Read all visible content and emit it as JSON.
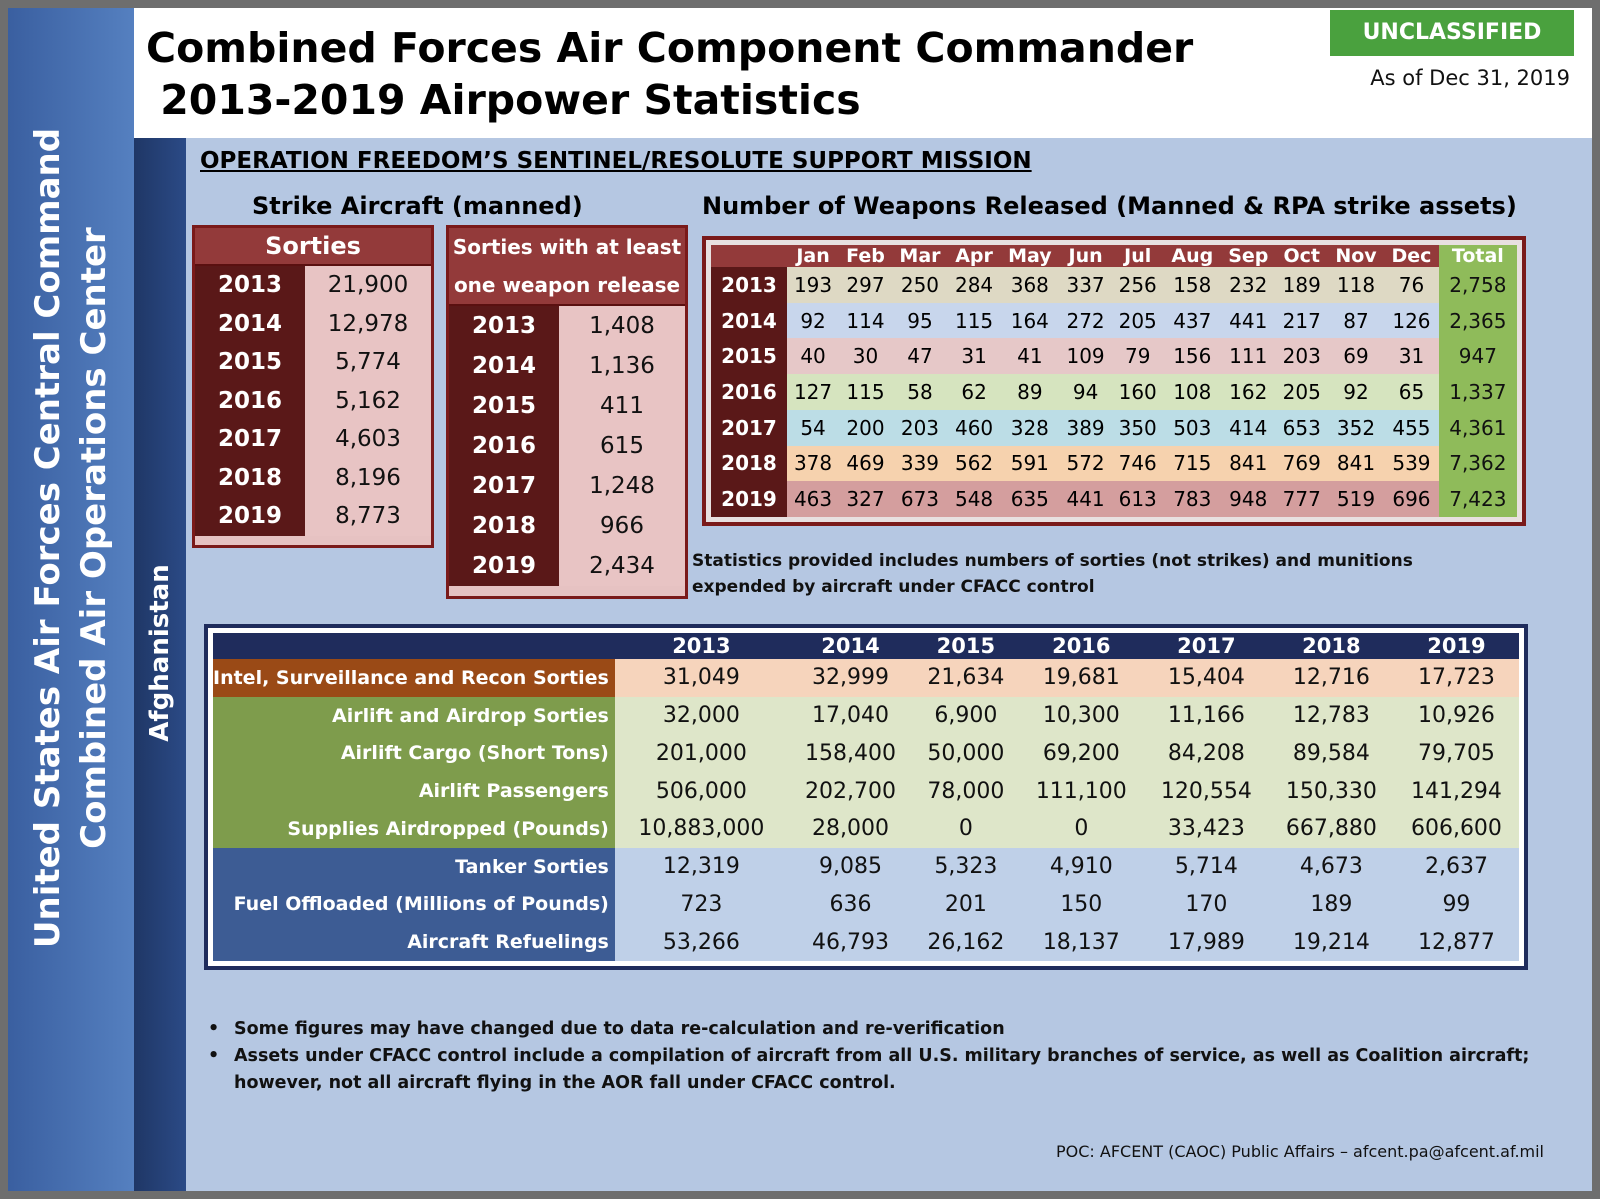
{
  "header": {
    "title_line1": "Combined Forces Air Component Commander",
    "title_line2": " 2013-2019 Airpower Statistics",
    "classification": "UNCLASSIFIED",
    "as_of": "As of Dec 31, 2019"
  },
  "sidebar": {
    "line1": "United States Air Forces Central Command",
    "line2": "Combined Air Operations Center",
    "region": "Afghanistan"
  },
  "mission_title": "OPERATION FREEDOM’S SENTINEL/RESOLUTE SUPPORT MISSION",
  "strike": {
    "title": "Strike Aircraft (manned)",
    "sorties": {
      "header": "Sorties",
      "rows": [
        {
          "year": "2013",
          "value": "21,900"
        },
        {
          "year": "2014",
          "value": "12,978"
        },
        {
          "year": "2015",
          "value": "5,774"
        },
        {
          "year": "2016",
          "value": "5,162"
        },
        {
          "year": "2017",
          "value": "4,603"
        },
        {
          "year": "2018",
          "value": "8,196"
        },
        {
          "year": "2019",
          "value": "8,773"
        }
      ]
    },
    "weapon_release": {
      "header_line1": "Sorties with at least",
      "header_line2": "one weapon release",
      "rows": [
        {
          "year": "2013",
          "value": "1,408"
        },
        {
          "year": "2014",
          "value": "1,136"
        },
        {
          "year": "2015",
          "value": "411"
        },
        {
          "year": "2016",
          "value": "615"
        },
        {
          "year": "2017",
          "value": "1,248"
        },
        {
          "year": "2018",
          "value": "966"
        },
        {
          "year": "2019",
          "value": "2,434"
        }
      ]
    }
  },
  "weapons": {
    "title": "Number of Weapons Released (Manned & RPA strike assets)",
    "columns": [
      "Jan",
      "Feb",
      "Mar",
      "Apr",
      "May",
      "Jun",
      "Jul",
      "Aug",
      "Sep",
      "Oct",
      "Nov",
      "Dec",
      "Total"
    ],
    "rows": [
      {
        "year": "2013",
        "color": "#ded9c4",
        "values": [
          "193",
          "297",
          "250",
          "284",
          "368",
          "337",
          "256",
          "158",
          "232",
          "189",
          "118",
          "76",
          "2,758"
        ]
      },
      {
        "year": "2014",
        "color": "#c8d6ec",
        "values": [
          "92",
          "114",
          "95",
          "115",
          "164",
          "272",
          "205",
          "437",
          "441",
          "217",
          "87",
          "126",
          "2,365"
        ]
      },
      {
        "year": "2015",
        "color": "#e6c8c8",
        "values": [
          "40",
          "30",
          "47",
          "31",
          "41",
          "109",
          "79",
          "156",
          "111",
          "203",
          "69",
          "31",
          "947"
        ]
      },
      {
        "year": "2016",
        "color": "#d6e4bf",
        "values": [
          "127",
          "115",
          "58",
          "62",
          "89",
          "94",
          "160",
          "108",
          "162",
          "205",
          "92",
          "65",
          "1,337"
        ]
      },
      {
        "year": "2017",
        "color": "#bcdde6",
        "values": [
          "54",
          "200",
          "203",
          "460",
          "328",
          "389",
          "350",
          "503",
          "414",
          "653",
          "352",
          "455",
          "4,361"
        ]
      },
      {
        "year": "2018",
        "color": "#f6d2ae",
        "values": [
          "378",
          "469",
          "339",
          "562",
          "591",
          "572",
          "746",
          "715",
          "841",
          "769",
          "841",
          "539",
          "7,362"
        ]
      },
      {
        "year": "2019",
        "color": "#d49e9e",
        "values": [
          "463",
          "327",
          "673",
          "548",
          "635",
          "441",
          "613",
          "783",
          "948",
          "777",
          "519",
          "696",
          "7,423"
        ]
      }
    ],
    "note": "Statistics provided includes numbers of sorties (not strikes) and munitions expended by aircraft under CFACC control"
  },
  "summary": {
    "years": [
      "2013",
      "2014",
      "2015",
      "2016",
      "2017",
      "2018",
      "2019"
    ],
    "rows": [
      {
        "group": "isr",
        "label": "Intel, Surveillance and Recon Sorties",
        "values": [
          "31,049",
          "32,999",
          "21,634",
          "19,681",
          "15,404",
          "12,716",
          "17,723"
        ]
      },
      {
        "group": "air",
        "label": "Airlift and Airdrop Sorties",
        "values": [
          "32,000",
          "17,040",
          "6,900",
          "10,300",
          "11,166",
          "12,783",
          "10,926"
        ]
      },
      {
        "group": "air",
        "label": "Airlift Cargo (Short Tons)",
        "values": [
          "201,000",
          "158,400",
          "50,000",
          "69,200",
          "84,208",
          "89,584",
          "79,705"
        ]
      },
      {
        "group": "air",
        "label": "Airlift Passengers",
        "values": [
          "506,000",
          "202,700",
          "78,000",
          "111,100",
          "120,554",
          "150,330",
          "141,294"
        ]
      },
      {
        "group": "air",
        "label": "Supplies Airdropped (Pounds)",
        "values": [
          "10,883,000",
          "28,000",
          "0",
          "0",
          "33,423",
          "667,880",
          "606,600"
        ]
      },
      {
        "group": "tank",
        "label": "Tanker Sorties",
        "values": [
          "12,319",
          "9,085",
          "5,323",
          "4,910",
          "5,714",
          "4,673",
          "2,637"
        ]
      },
      {
        "group": "tank",
        "label": "Fuel Offloaded (Millions of Pounds)",
        "values": [
          "723",
          "636",
          "201",
          "150",
          "170",
          "189",
          "99"
        ]
      },
      {
        "group": "tank",
        "label": "Aircraft Refuelings",
        "values": [
          "53,266",
          "46,793",
          "26,162",
          "18,137",
          "17,989",
          "19,214",
          "12,877"
        ]
      }
    ]
  },
  "bullets": [
    "Some figures may have changed due to data re-calculation and re-verification",
    "Assets under CFACC control include a compilation of aircraft from all U.S.  military branches of service, as well as Coalition aircraft; however, not all aircraft flying in the AOR fall under CFACC control."
  ],
  "poc": "POC:  AFCENT (CAOC) Public Affairs – afcent.pa@afcent.af.mil"
}
